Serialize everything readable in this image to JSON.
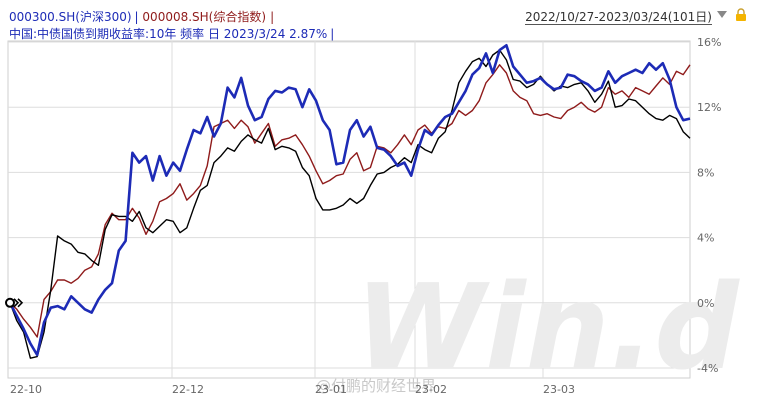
{
  "header": {
    "series1_label": "000300.SH(沪深300)",
    "series2_label": "000008.SH(综合指数)",
    "row2_label": "中国:中债国债到期收益率:10年 频率 日 2023/3/24 2.87%",
    "pipe": "|",
    "date_range": "2022/10/27-2023/03/24(101日)"
  },
  "watermark": {
    "logo": "Win.d",
    "weibo": "@付鹏的财经世界"
  },
  "colors": {
    "series1": "#1d2bb6",
    "series2": "#8f1b1b",
    "series3": "#000000",
    "grid": "#dddddd"
  },
  "chart_data": {
    "type": "line",
    "title": "",
    "xlabel": "",
    "ylabel": "",
    "ylim": [
      -4,
      16
    ],
    "y_ticks": [
      "16%",
      "12%",
      "8%",
      "4%",
      "0%",
      "-4%"
    ],
    "x_ticks": [
      "22-10",
      "22-12",
      "23-01",
      "23-02",
      "23-03"
    ],
    "grid": true,
    "n_points": 101,
    "series": [
      {
        "name": "000300.SH(沪深300)",
        "values": [
          0.0,
          -0.8,
          -1.6,
          -2.5,
          -3.2,
          -1.2,
          -0.3,
          -0.2,
          -0.4,
          0.4,
          0.0,
          -0.4,
          -0.6,
          0.2,
          0.8,
          1.2,
          3.2,
          3.8,
          9.2,
          8.6,
          9.0,
          7.5,
          9.0,
          7.8,
          8.6,
          8.1,
          9.4,
          10.6,
          10.4,
          11.4,
          10.2,
          11.0,
          13.2,
          12.6,
          13.8,
          12.1,
          11.2,
          11.4,
          12.5,
          13.0,
          12.9,
          13.2,
          13.1,
          12.0,
          13.1,
          12.4,
          11.2,
          10.6,
          8.5,
          8.6,
          10.6,
          11.2,
          10.2,
          10.8,
          9.5,
          9.4,
          9.0,
          8.4,
          8.6,
          7.8,
          9.4,
          10.6,
          10.3,
          10.9,
          11.4,
          11.6,
          12.3,
          13.0,
          14.0,
          14.4,
          15.3,
          14.1,
          15.5,
          15.8,
          14.5,
          14.0,
          13.5,
          13.6,
          13.8,
          13.4,
          13.1,
          13.2,
          14.0,
          13.9,
          13.6,
          13.4,
          13.0,
          13.2,
          14.2,
          13.5,
          13.9,
          14.1,
          14.3,
          14.1,
          14.7,
          14.3,
          14.7,
          13.7,
          12.0,
          11.2,
          11.3
        ],
        "color": "#1d2bb6"
      },
      {
        "name": "000008.SH(综合指数)",
        "values": [
          0.0,
          -0.4,
          -1.0,
          -1.5,
          -2.1,
          0.2,
          0.7,
          1.4,
          1.4,
          1.2,
          1.5,
          2.0,
          2.2,
          3.0,
          4.8,
          5.5,
          5.1,
          5.1,
          5.8,
          5.2,
          4.2,
          5.0,
          6.2,
          6.4,
          6.7,
          7.3,
          6.3,
          6.7,
          7.2,
          8.4,
          10.8,
          11.0,
          11.2,
          10.7,
          11.2,
          10.8,
          9.8,
          10.4,
          11.0,
          9.6,
          10.0,
          10.1,
          10.3,
          9.7,
          9.0,
          8.1,
          7.3,
          7.5,
          7.8,
          7.9,
          8.8,
          9.2,
          8.1,
          8.3,
          9.6,
          9.5,
          9.2,
          9.7,
          10.3,
          9.7,
          10.6,
          10.9,
          10.4,
          10.8,
          10.7,
          11.0,
          11.8,
          11.5,
          11.8,
          12.4,
          13.5,
          14.0,
          14.6,
          14.1,
          13.0,
          12.6,
          12.4,
          11.6,
          11.5,
          11.6,
          11.4,
          11.3,
          11.8,
          12.0,
          12.3,
          11.9,
          11.7,
          12.0,
          13.2,
          12.8,
          13.0,
          12.6,
          13.2,
          13.0,
          12.8,
          13.3,
          13.8,
          13.4,
          14.2,
          14.0,
          14.6
        ],
        "color": "#8f1b1b"
      },
      {
        "name": "",
        "values": [
          0.0,
          -1.1,
          -1.8,
          -3.4,
          -3.3,
          -1.8,
          0.8,
          4.1,
          3.8,
          3.6,
          3.1,
          3.0,
          2.6,
          2.3,
          4.5,
          5.4,
          5.3,
          5.3,
          5.0,
          5.6,
          4.6,
          4.3,
          4.7,
          5.1,
          5.0,
          4.3,
          4.6,
          5.8,
          6.9,
          7.2,
          8.6,
          9.0,
          9.5,
          9.3,
          9.9,
          10.3,
          10.0,
          9.8,
          10.7,
          9.4,
          9.6,
          9.5,
          9.3,
          8.3,
          7.8,
          6.4,
          5.7,
          5.7,
          5.8,
          6.0,
          6.4,
          6.1,
          6.4,
          7.2,
          7.9,
          8.0,
          8.3,
          8.5,
          8.9,
          8.6,
          9.7,
          9.4,
          9.2,
          10.1,
          10.5,
          11.8,
          13.5,
          14.2,
          14.8,
          15.0,
          14.5,
          15.2,
          15.5,
          14.9,
          13.7,
          13.6,
          13.2,
          13.4,
          13.9,
          13.4,
          13.0,
          13.3,
          13.2,
          13.4,
          13.5,
          13.0,
          12.3,
          12.8,
          13.6,
          12.0,
          12.1,
          12.5,
          12.4,
          12.0,
          11.6,
          11.3,
          11.2,
          11.5,
          11.3,
          10.5,
          10.1
        ]
      }
    ]
  }
}
